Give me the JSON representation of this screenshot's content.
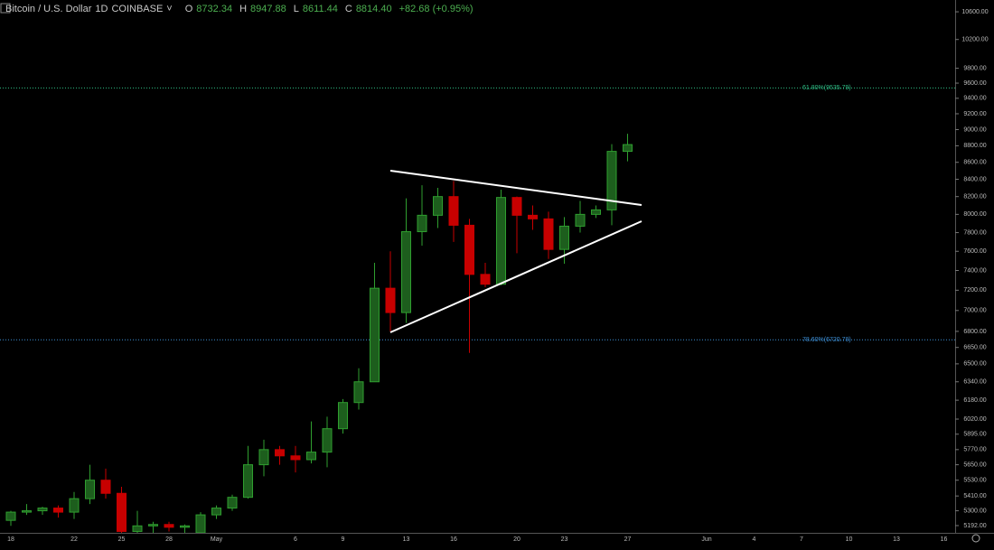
{
  "header": {
    "symbol": "Bitcoin / U.S. Dollar",
    "interval": "1D",
    "exchange": "COINBASE",
    "ohlc": [
      {
        "label": "O",
        "value": "8732.34"
      },
      {
        "label": "H",
        "value": "8947.88"
      },
      {
        "label": "L",
        "value": "8611.44"
      },
      {
        "label": "C",
        "value": "8814.40"
      }
    ],
    "change": "+82.68 (+0.95%)"
  },
  "chart_data": {
    "type": "candlestick",
    "log_scale": true,
    "grid": false,
    "up_color": "#2f9e2f",
    "up_fill": "#1d5e1d",
    "down_color": "#c80000",
    "categories": [
      "18",
      null,
      null,
      null,
      "22",
      null,
      null,
      "25",
      null,
      null,
      "28",
      null,
      null,
      "May",
      null,
      null,
      null,
      null,
      "6",
      null,
      null,
      "9",
      null,
      null,
      null,
      "13",
      null,
      null,
      "16",
      null,
      null,
      null,
      "20",
      null,
      null,
      "23",
      null,
      null,
      null,
      "27",
      null,
      null,
      null,
      null,
      "Jun",
      null,
      null,
      "4",
      null,
      null,
      "7",
      null,
      null,
      "10",
      null,
      null,
      "13",
      null,
      null,
      "16"
    ],
    "open": [
      5230,
      5290,
      5300,
      5320,
      5290,
      5390,
      5530,
      5430,
      5150,
      5190,
      5200,
      5180,
      5140,
      5270,
      5320,
      5400,
      5650,
      5770,
      5720,
      5690,
      5750,
      5940,
      6160,
      6340,
      7220,
      6980,
      7810,
      7990,
      8200,
      7880,
      7360,
      7260,
      8190,
      7990,
      7950,
      7620,
      7870,
      8000,
      8050,
      8732.34,
      null,
      null,
      null,
      null,
      null,
      null,
      null,
      null,
      null,
      null,
      null,
      null,
      null,
      null,
      null,
      null,
      null,
      null,
      null,
      null
    ],
    "high": [
      5300,
      5350,
      5330,
      5340,
      5440,
      5650,
      5620,
      5480,
      5300,
      5220,
      5220,
      5200,
      5290,
      5340,
      5420,
      5800,
      5850,
      5800,
      5800,
      6000,
      6040,
      6190,
      6460,
      7480,
      7600,
      8180,
      8330,
      8300,
      8380,
      7950,
      7480,
      8280,
      8200,
      8100,
      8030,
      7970,
      8150,
      8100,
      8820,
      8947.88,
      null,
      null,
      null,
      null,
      null,
      null,
      null,
      null,
      null,
      null,
      null,
      null,
      null,
      null,
      null,
      null,
      null,
      null,
      null,
      null
    ],
    "low": [
      5190,
      5270,
      5270,
      5250,
      5240,
      5350,
      5390,
      5050,
      5110,
      5130,
      5150,
      5140,
      5130,
      5240,
      5300,
      5390,
      5560,
      5650,
      5590,
      5660,
      5630,
      5900,
      6100,
      6340,
      6800,
      6880,
      7660,
      7850,
      7700,
      6600,
      7230,
      7250,
      7580,
      7830,
      7520,
      7470,
      7800,
      7960,
      7880,
      8611.44,
      null,
      null,
      null,
      null,
      null,
      null,
      null,
      null,
      null,
      null,
      null,
      null,
      null,
      null,
      null,
      null,
      null,
      null,
      null,
      null
    ],
    "close": [
      5290,
      5300,
      5320,
      5290,
      5390,
      5530,
      5430,
      5150,
      5190,
      5200,
      5180,
      5190,
      5270,
      5320,
      5400,
      5650,
      5770,
      5720,
      5690,
      5750,
      5940,
      6160,
      6340,
      7220,
      6980,
      7810,
      7990,
      8200,
      7880,
      7360,
      7260,
      8190,
      7990,
      7950,
      7620,
      7870,
      8000,
      8050,
      8731.72,
      8814.4,
      null,
      null,
      null,
      null,
      null,
      null,
      null,
      null,
      null,
      null,
      null,
      null,
      null,
      null,
      null,
      null,
      null,
      null,
      null,
      null
    ],
    "ylim": [
      5140,
      10775
    ],
    "yticks": [
      {
        "value": 10600,
        "label": "10600.00"
      },
      {
        "value": 10200,
        "label": "10200.00"
      },
      {
        "value": 9800,
        "label": "9800.00"
      },
      {
        "value": 9600,
        "label": "9600.00"
      },
      {
        "value": 9400,
        "label": "9400.00"
      },
      {
        "value": 9200,
        "label": "9200.00"
      },
      {
        "value": 9000,
        "label": "9000.00"
      },
      {
        "value": 8800,
        "label": "8800.00"
      },
      {
        "value": 8600,
        "label": "8600.00"
      },
      {
        "value": 8400,
        "label": "8400.00"
      },
      {
        "value": 8200,
        "label": "8200.00"
      },
      {
        "value": 8000,
        "label": "8000.00"
      },
      {
        "value": 7800,
        "label": "7800.00"
      },
      {
        "value": 7600,
        "label": "7600.00"
      },
      {
        "value": 7400,
        "label": "7400.00"
      },
      {
        "value": 7200,
        "label": "7200.00"
      },
      {
        "value": 7000,
        "label": "7000.00"
      },
      {
        "value": 6800,
        "label": "6800.00"
      },
      {
        "value": 6650,
        "label": "6650.00"
      },
      {
        "value": 6500,
        "label": "6500.00"
      },
      {
        "value": 6340,
        "label": "6340.00"
      },
      {
        "value": 6180,
        "label": "6180.00"
      },
      {
        "value": 6020,
        "label": "6020.00"
      },
      {
        "value": 5895,
        "label": "5895.00"
      },
      {
        "value": 5770,
        "label": "5770.00"
      },
      {
        "value": 5650,
        "label": "5650.00"
      },
      {
        "value": 5530,
        "label": "5530.00"
      },
      {
        "value": 5410,
        "label": "5410.00"
      },
      {
        "value": 5300,
        "label": "5300.00"
      },
      {
        "value": 5192,
        "label": "5192.00"
      }
    ],
    "levels": [
      {
        "label": "61.80%(9535.79)",
        "value": 9535.79,
        "color": "#2ebd85"
      },
      {
        "label": "78.60%(6720.78)",
        "value": 6720.78,
        "color": "#3d8fd6"
      }
    ]
  }
}
